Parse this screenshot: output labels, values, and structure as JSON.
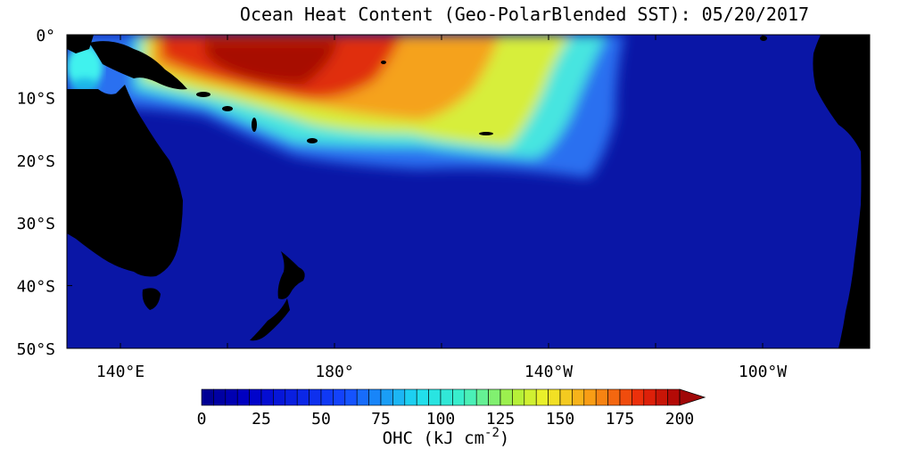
{
  "title": "Ocean Heat Content (Geo-PolarBlended SST): 05/20/2017",
  "map": {
    "lat_labels": [
      "0°",
      "10°S",
      "20°S",
      "30°S",
      "40°S",
      "50°S"
    ],
    "lon_labels": [
      "140°E",
      "180°",
      "140°W",
      "100°W"
    ]
  },
  "colorbar": {
    "tick_labels": [
      "0",
      "25",
      "50",
      "75",
      "100",
      "125",
      "150",
      "175",
      "200"
    ],
    "label_main": "OHC (kJ cm",
    "label_exp": "-2",
    "label_close": ")",
    "range": [
      0,
      200
    ],
    "extend": "max"
  },
  "colors": {
    "land": "#000000",
    "ocean_low": "#0a16a6",
    "ocean_mid": "#1e4bdc",
    "cyan": "#3ff2ee",
    "yellow": "#f4f02a",
    "orange": "#f39a12",
    "red": "#d8190b",
    "dark_red": "#a90a06"
  }
}
